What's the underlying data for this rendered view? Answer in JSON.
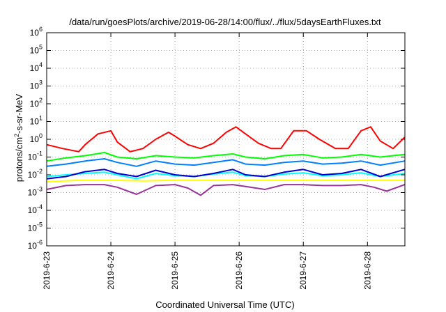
{
  "chart_data": {
    "type": "line",
    "title": "/data/run/goesPlots/archive/2019-06-28/14:00/flux/../flux/5daysEarthFluxes.txt",
    "xlabel": "Coordinated Universal Time (UTC)",
    "ylabel": "protons/cm²-s-sr-MeV",
    "ylabel_parts": {
      "pre": "protons/cm",
      "sup": "2",
      "post": "-s-sr-MeV"
    },
    "yscale": "log",
    "ylim": [
      1e-06,
      1000000.0
    ],
    "y_ticks": [
      {
        "base": "10",
        "exp": "-6"
      },
      {
        "base": "10",
        "exp": "-5"
      },
      {
        "base": "10",
        "exp": "-4"
      },
      {
        "base": "10",
        "exp": "-3"
      },
      {
        "base": "10",
        "exp": "-2"
      },
      {
        "base": "10",
        "exp": "-1"
      },
      {
        "base": "10",
        "exp": "0"
      },
      {
        "base": "10",
        "exp": "1"
      },
      {
        "base": "10",
        "exp": "2"
      },
      {
        "base": "10",
        "exp": "3"
      },
      {
        "base": "10",
        "exp": "4"
      },
      {
        "base": "10",
        "exp": "5"
      },
      {
        "base": "10",
        "exp": "6"
      }
    ],
    "x_ticks": [
      "2019-6-23",
      "2019-6-24",
      "2019-6-25",
      "2019-6-26",
      "2019-6-27",
      "2019-6-28"
    ],
    "xlim": [
      "2019-06-23T00:00",
      "2019-06-28T14:00"
    ],
    "grid": true,
    "series": [
      {
        "color": "#ff0000",
        "x_days": [
          0,
          0.25,
          0.5,
          0.6,
          0.8,
          1.0,
          1.1,
          1.3,
          1.5,
          1.7,
          1.9,
          2.0,
          2.2,
          2.4,
          2.6,
          2.8,
          2.95,
          3.1,
          3.3,
          3.5,
          3.65,
          3.85,
          4.05,
          4.25,
          4.5,
          4.7,
          4.9,
          5.05,
          5.2,
          5.4,
          5.58
        ],
        "values": [
          0.5,
          0.3,
          0.2,
          0.5,
          2.0,
          3.0,
          0.7,
          0.2,
          0.3,
          1.0,
          2.5,
          1.5,
          0.5,
          0.3,
          0.6,
          2.5,
          5.0,
          2.0,
          0.6,
          0.3,
          0.3,
          3.0,
          3.0,
          1.0,
          0.3,
          0.3,
          3.0,
          5.0,
          0.8,
          0.3,
          1.3
        ]
      },
      {
        "color": "#00ff00",
        "x_days": [
          0,
          0.3,
          0.6,
          0.9,
          1.1,
          1.4,
          1.7,
          2.0,
          2.3,
          2.6,
          2.9,
          3.1,
          3.4,
          3.7,
          4.0,
          4.3,
          4.6,
          4.9,
          5.2,
          5.58
        ],
        "values": [
          0.06,
          0.09,
          0.12,
          0.18,
          0.1,
          0.08,
          0.12,
          0.1,
          0.09,
          0.12,
          0.15,
          0.1,
          0.08,
          0.12,
          0.14,
          0.09,
          0.1,
          0.14,
          0.1,
          0.14
        ]
      },
      {
        "color": "#0080ff",
        "x_days": [
          0,
          0.3,
          0.6,
          0.9,
          1.1,
          1.4,
          1.7,
          2.0,
          2.3,
          2.6,
          2.9,
          3.1,
          3.4,
          3.7,
          4.0,
          4.3,
          4.6,
          4.9,
          5.2,
          5.58
        ],
        "values": [
          0.03,
          0.04,
          0.06,
          0.08,
          0.05,
          0.03,
          0.06,
          0.04,
          0.035,
          0.05,
          0.07,
          0.04,
          0.035,
          0.05,
          0.06,
          0.04,
          0.045,
          0.06,
          0.035,
          0.06
        ]
      },
      {
        "color": "#00ffff",
        "x_days": [
          0,
          0.3,
          0.6,
          0.9,
          1.1,
          1.4,
          1.7,
          2.0,
          2.3,
          2.6,
          2.9,
          3.1,
          3.4,
          3.7,
          4.0,
          4.3,
          4.6,
          4.9,
          5.2,
          5.58
        ],
        "values": [
          0.008,
          0.01,
          0.012,
          0.014,
          0.01,
          0.006,
          0.012,
          0.009,
          0.008,
          0.011,
          0.014,
          0.009,
          0.008,
          0.011,
          0.013,
          0.009,
          0.01,
          0.013,
          0.008,
          0.012
        ]
      },
      {
        "color": "#0000cc",
        "x_days": [
          0,
          0.3,
          0.6,
          0.9,
          1.1,
          1.4,
          1.7,
          2.0,
          2.3,
          2.6,
          2.9,
          3.1,
          3.4,
          3.7,
          4.0,
          4.3,
          4.6,
          4.9,
          5.2,
          5.58
        ],
        "values": [
          0.006,
          0.008,
          0.015,
          0.02,
          0.012,
          0.008,
          0.018,
          0.01,
          0.008,
          0.012,
          0.02,
          0.01,
          0.008,
          0.014,
          0.02,
          0.01,
          0.012,
          0.02,
          0.008,
          0.02
        ]
      },
      {
        "color": "#ffff00",
        "x_days": [
          0,
          0.5,
          1.0,
          1.5,
          2.0,
          2.5,
          3.0,
          3.5,
          4.0,
          4.5,
          5.0,
          5.58
        ],
        "values": [
          0.004,
          0.005,
          0.005,
          0.0045,
          0.005,
          0.005,
          0.005,
          0.005,
          0.005,
          0.005,
          0.005,
          0.005
        ]
      },
      {
        "color": "#993399",
        "x_days": [
          0,
          0.3,
          0.6,
          0.9,
          1.1,
          1.4,
          1.7,
          2.0,
          2.2,
          2.4,
          2.6,
          2.9,
          3.1,
          3.4,
          3.7,
          4.0,
          4.3,
          4.6,
          4.9,
          5.1,
          5.3,
          5.58
        ],
        "values": [
          0.0015,
          0.0025,
          0.0028,
          0.0028,
          0.002,
          0.0008,
          0.0025,
          0.0028,
          0.0018,
          0.0007,
          0.0025,
          0.0028,
          0.0022,
          0.0015,
          0.0028,
          0.0028,
          0.0025,
          0.0025,
          0.0028,
          0.002,
          0.0012,
          0.0028
        ]
      }
    ]
  }
}
